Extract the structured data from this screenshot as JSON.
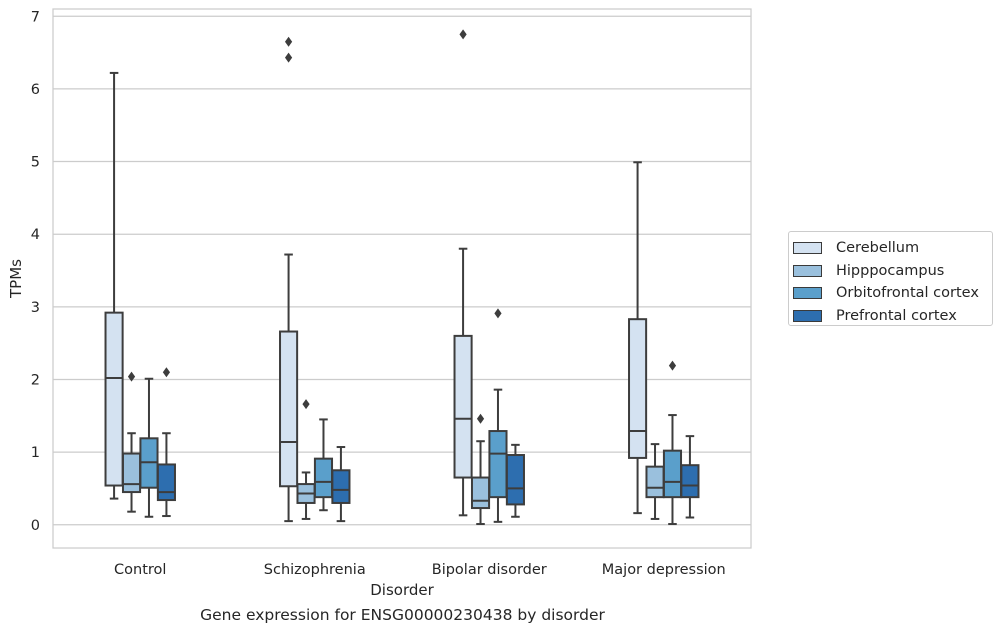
{
  "chart_data": {
    "type": "boxplot",
    "caption": "Gene expression for ENSG00000230438 by disorder",
    "xlabel": "Disorder",
    "ylabel": "TPMs",
    "ylim": [
      -0.32,
      7.1
    ],
    "yticks": [
      0,
      1,
      2,
      3,
      4,
      5,
      6,
      7
    ],
    "grid": true,
    "legend_position": "right",
    "categories": [
      "Control",
      "Schizophrenia",
      "Bipolar disorder",
      "Major depression"
    ],
    "series": [
      {
        "name": "Cerebellum",
        "color": "#d4e2f1",
        "boxes": [
          {
            "whisker_low": 0.36,
            "q1": 0.54,
            "median": 2.02,
            "q3": 2.92,
            "whisker_high": 6.22,
            "outliers": []
          },
          {
            "whisker_low": 0.05,
            "q1": 0.53,
            "median": 1.14,
            "q3": 2.66,
            "whisker_high": 3.72,
            "outliers": [
              6.43,
              6.65
            ]
          },
          {
            "whisker_low": 0.13,
            "q1": 0.65,
            "median": 1.46,
            "q3": 2.6,
            "whisker_high": 3.8,
            "outliers": [
              6.75
            ]
          },
          {
            "whisker_low": 0.16,
            "q1": 0.92,
            "median": 1.29,
            "q3": 2.83,
            "whisker_high": 4.99,
            "outliers": []
          }
        ]
      },
      {
        "name": "Hipppocampus",
        "color": "#9ac0dd",
        "boxes": [
          {
            "whisker_low": 0.18,
            "q1": 0.45,
            "median": 0.56,
            "q3": 0.98,
            "whisker_high": 1.26,
            "outliers": [
              2.04
            ]
          },
          {
            "whisker_low": 0.08,
            "q1": 0.3,
            "median": 0.43,
            "q3": 0.56,
            "whisker_high": 0.72,
            "outliers": [
              1.66
            ]
          },
          {
            "whisker_low": 0.01,
            "q1": 0.23,
            "median": 0.33,
            "q3": 0.65,
            "whisker_high": 1.15,
            "outliers": [
              1.46
            ]
          },
          {
            "whisker_low": 0.08,
            "q1": 0.38,
            "median": 0.51,
            "q3": 0.8,
            "whisker_high": 1.11,
            "outliers": []
          }
        ]
      },
      {
        "name": "Orbitofrontal cortex",
        "color": "#5a9fcb",
        "boxes": [
          {
            "whisker_low": 0.11,
            "q1": 0.51,
            "median": 0.86,
            "q3": 1.19,
            "whisker_high": 2.01,
            "outliers": []
          },
          {
            "whisker_low": 0.2,
            "q1": 0.38,
            "median": 0.59,
            "q3": 0.91,
            "whisker_high": 1.45,
            "outliers": []
          },
          {
            "whisker_low": 0.04,
            "q1": 0.38,
            "median": 0.98,
            "q3": 1.29,
            "whisker_high": 1.86,
            "outliers": [
              2.91
            ]
          },
          {
            "whisker_low": 0.01,
            "q1": 0.38,
            "median": 0.59,
            "q3": 1.02,
            "whisker_high": 1.51,
            "outliers": [
              2.19
            ]
          }
        ]
      },
      {
        "name": "Prefrontal cortex",
        "color": "#2d6eaf",
        "boxes": [
          {
            "whisker_low": 0.12,
            "q1": 0.34,
            "median": 0.45,
            "q3": 0.83,
            "whisker_high": 1.26,
            "outliers": [
              2.1
            ]
          },
          {
            "whisker_low": 0.05,
            "q1": 0.3,
            "median": 0.48,
            "q3": 0.75,
            "whisker_high": 1.07,
            "outliers": []
          },
          {
            "whisker_low": 0.11,
            "q1": 0.28,
            "median": 0.5,
            "q3": 0.96,
            "whisker_high": 1.1,
            "outliers": []
          },
          {
            "whisker_low": 0.1,
            "q1": 0.38,
            "median": 0.54,
            "q3": 0.82,
            "whisker_high": 1.22,
            "outliers": []
          }
        ]
      }
    ]
  }
}
